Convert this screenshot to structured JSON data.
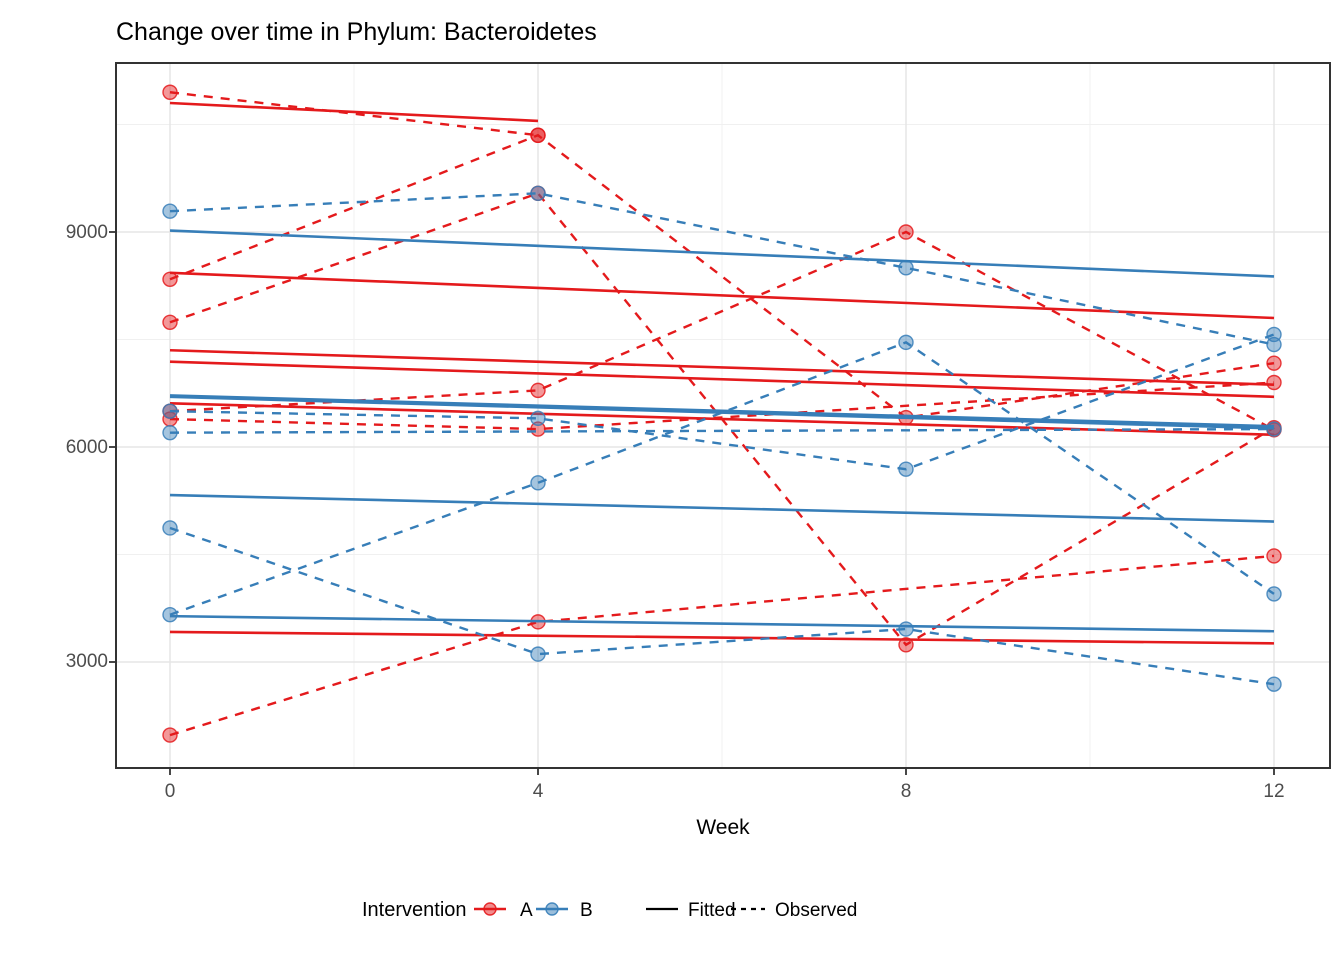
{
  "title": "Change over time in Phylum: Bacteroidetes",
  "x_axis": {
    "label": "Week",
    "tick_labels": [
      "0",
      "4",
      "8",
      "12"
    ]
  },
  "y_axis": {
    "tick_labels": [
      "3000",
      "6000",
      "9000"
    ]
  },
  "legend": {
    "title": "Intervention",
    "items": [
      {
        "label": "A",
        "color": "#E41A1C"
      },
      {
        "label": "B",
        "color": "#377EB8"
      }
    ],
    "linetype_items": [
      {
        "label": "Fitted",
        "style": "solid"
      },
      {
        "label": "Observed",
        "style": "dashed"
      }
    ]
  },
  "colors": {
    "A": "#E41A1C",
    "B": "#377EB8",
    "grid_major": "#E5E5E5",
    "grid_minor": "#F0F0F0",
    "panel_border": "#333333",
    "tick_text": "#4d4d4d",
    "key_line": "#000000"
  },
  "chart_data": {
    "type": "line",
    "title": "Change over time in Phylum: Bacteroidetes",
    "xlabel": "Week",
    "ylabel": "",
    "x": {
      "ticks": [
        0,
        4,
        8,
        12
      ],
      "minor_ticks": [
        2,
        6,
        10
      ],
      "domain": [
        -0.6,
        12.6
      ]
    },
    "y": {
      "ticks": [
        3000,
        6000,
        9000
      ],
      "minor_ticks": [
        4500,
        7500,
        10500
      ],
      "domain": [
        1520,
        11360
      ]
    },
    "grid": "on",
    "legend_position": "bottom",
    "series_semantics": "solid lines = per-subject fitted regression, dashed lines = observed trajectories, points = observations",
    "subjects": [
      {
        "id": "A1",
        "intervention": "A",
        "observed": [
          [
            0,
            10950
          ],
          [
            4,
            10350
          ]
        ],
        "fitted": [
          [
            0,
            10800
          ],
          [
            4,
            10550
          ]
        ]
      },
      {
        "id": "A2",
        "intervention": "A",
        "observed": [
          [
            0,
            8340
          ],
          [
            4,
            10350
          ],
          [
            8,
            6410
          ],
          [
            12,
            7170
          ]
        ],
        "fitted": [
          [
            0,
            8430
          ],
          [
            12,
            7800
          ]
        ]
      },
      {
        "id": "A3",
        "intervention": "A",
        "observed": [
          [
            0,
            7740
          ],
          [
            4,
            9540
          ],
          [
            8,
            3240
          ],
          [
            12,
            6270
          ]
        ],
        "fitted": [
          [
            0,
            7350
          ],
          [
            12,
            6870
          ]
        ]
      },
      {
        "id": "A4",
        "intervention": "A",
        "observed": [
          [
            0,
            6500
          ],
          [
            4,
            6790
          ],
          [
            8,
            9000
          ],
          [
            12,
            6240
          ]
        ],
        "fitted": [
          [
            0,
            7190
          ],
          [
            12,
            6700
          ]
        ]
      },
      {
        "id": "A5",
        "intervention": "A",
        "observed": [
          [
            0,
            6390
          ],
          [
            4,
            6250
          ],
          [
            12,
            6900
          ]
        ],
        "fitted": [
          [
            0,
            6610
          ],
          [
            12,
            6170
          ]
        ]
      },
      {
        "id": "A6",
        "intervention": "A",
        "observed": [
          [
            0,
            1980
          ],
          [
            4,
            3560
          ],
          [
            12,
            4480
          ]
        ],
        "fitted": [
          [
            0,
            3420
          ],
          [
            12,
            3260
          ]
        ]
      },
      {
        "id": "B1",
        "intervention": "B",
        "observed": [
          [
            0,
            9290
          ],
          [
            4,
            9540
          ],
          [
            8,
            8500
          ],
          [
            12,
            7430
          ]
        ],
        "fitted": [
          [
            0,
            9020
          ],
          [
            12,
            8380
          ]
        ]
      },
      {
        "id": "B2",
        "intervention": "B",
        "observed": [
          [
            0,
            6500
          ],
          [
            4,
            6400
          ],
          [
            8,
            5690
          ],
          [
            12,
            7570
          ]
        ],
        "fitted": [
          [
            0,
            6720
          ],
          [
            12,
            6290
          ]
        ]
      },
      {
        "id": "B3",
        "intervention": "B",
        "observed": [
          [
            0,
            6200
          ],
          [
            12,
            6250
          ]
        ],
        "fitted": [
          [
            0,
            6700
          ],
          [
            12,
            6260
          ]
        ]
      },
      {
        "id": "B4",
        "intervention": "B",
        "observed": [
          [
            0,
            4870
          ],
          [
            4,
            3110
          ],
          [
            8,
            3460
          ],
          [
            12,
            2690
          ]
        ],
        "fitted": [
          [
            0,
            3640
          ],
          [
            12,
            3430
          ]
        ]
      },
      {
        "id": "B5",
        "intervention": "B",
        "observed": [
          [
            0,
            3660
          ],
          [
            4,
            5500
          ],
          [
            8,
            7460
          ],
          [
            12,
            3950
          ]
        ],
        "fitted": [
          [
            0,
            5330
          ],
          [
            12,
            4960
          ]
        ]
      }
    ]
  }
}
